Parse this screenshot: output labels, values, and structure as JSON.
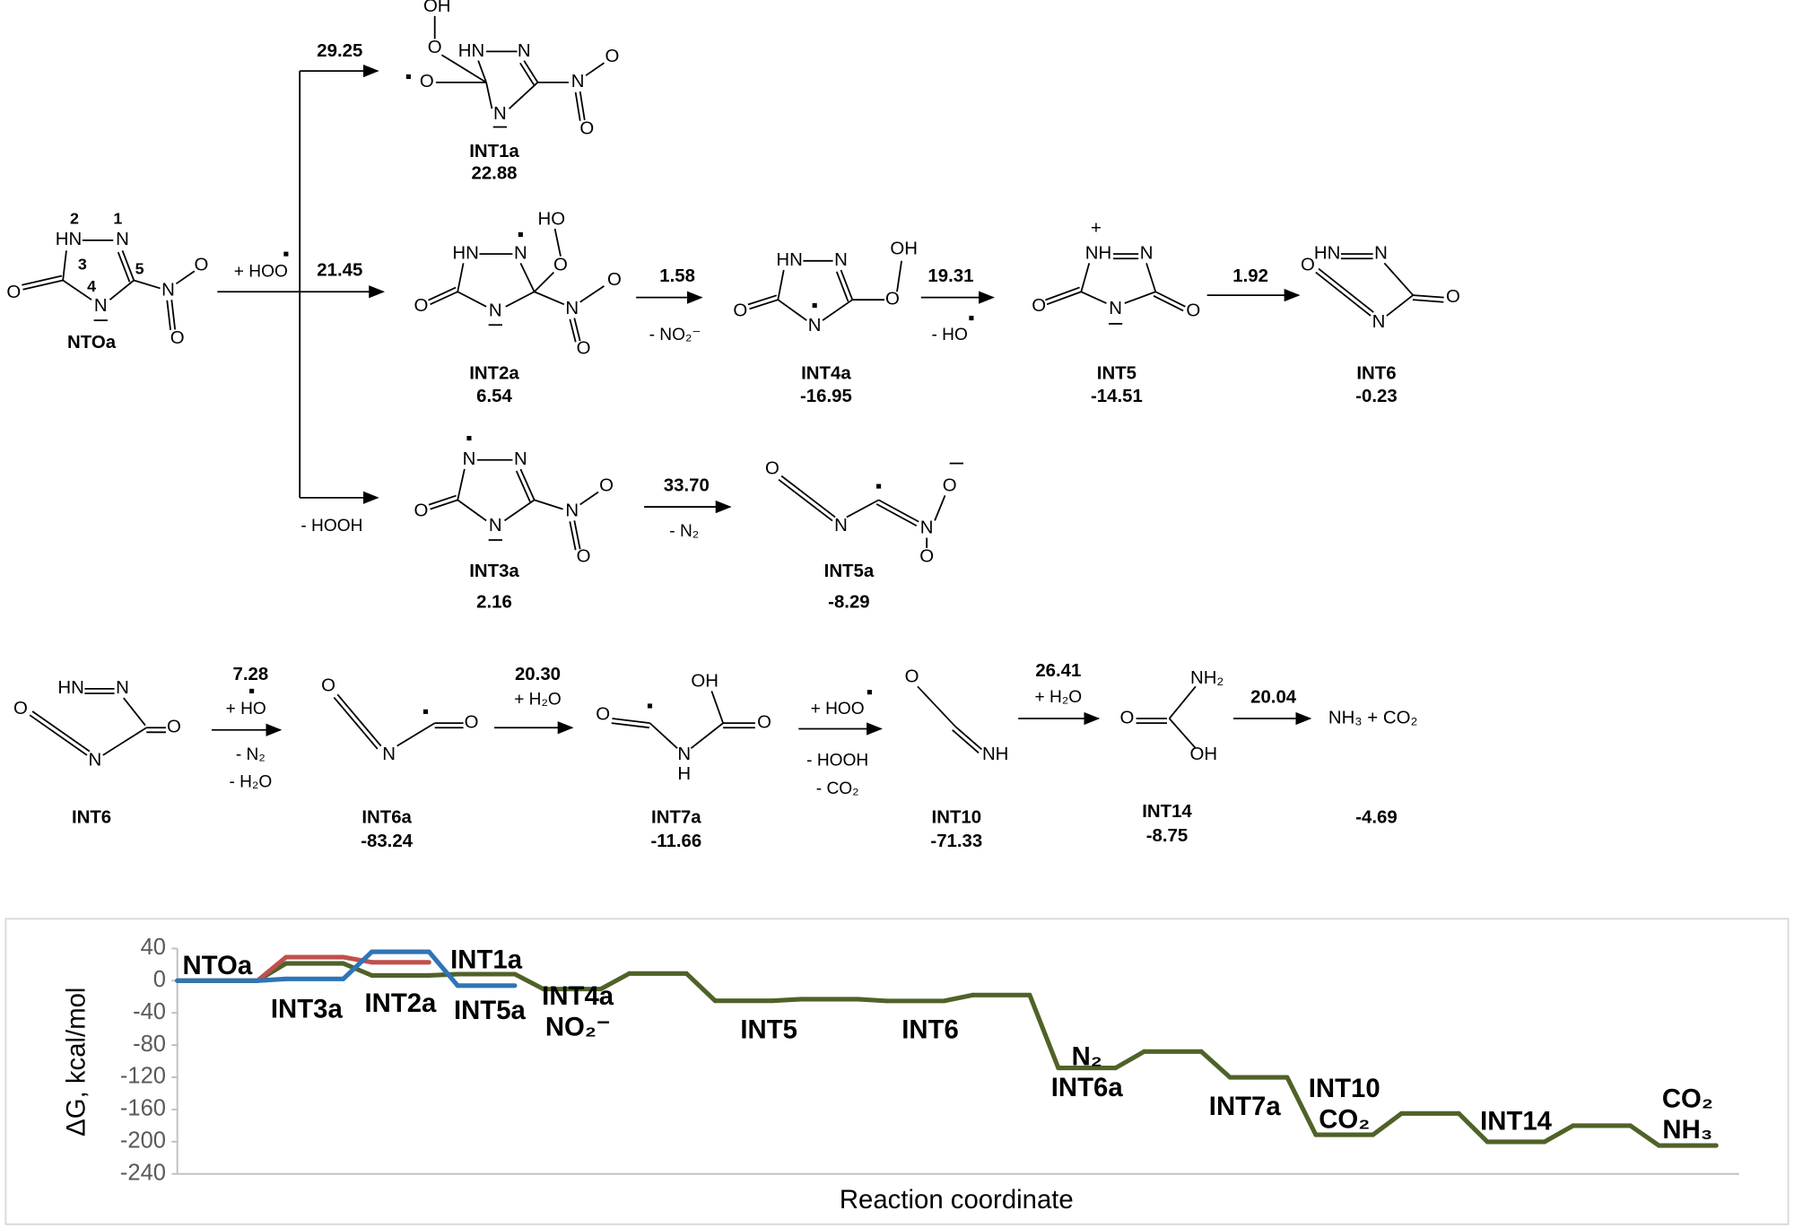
{
  "scheme": {
    "species": [
      {
        "name": "NTOa",
        "atoms": [
          "HN",
          "N",
          "O",
          "N",
          "N",
          "O",
          "O",
          "2",
          "1",
          "3",
          "4",
          "5"
        ]
      },
      {
        "name": "INT1a",
        "energy": "22.88",
        "atoms": [
          "OH",
          "O",
          "O",
          "HN",
          "N",
          "N",
          "N",
          "O",
          "O"
        ]
      },
      {
        "name": "INT2a",
        "energy": "6.54",
        "atoms": [
          "HN",
          "N",
          "HO",
          "O",
          "O",
          "N",
          "N",
          "O",
          "O"
        ]
      },
      {
        "name": "INT4a",
        "energy": "-16.95",
        "atoms": [
          "HN",
          "N",
          "OH",
          "O",
          "O",
          "N"
        ]
      },
      {
        "name": "INT5",
        "energy": "-14.51",
        "atoms": [
          "+",
          "NH",
          "N",
          "O",
          "O",
          "N"
        ]
      },
      {
        "name": "INT6",
        "energy": "-0.23",
        "atoms": [
          "HN",
          "N",
          "O",
          "N",
          "O"
        ]
      },
      {
        "name": "INT3a",
        "energy": "2.16",
        "atoms": [
          "N",
          "N",
          "O",
          "N",
          "N",
          "O",
          "O"
        ]
      },
      {
        "name": "INT5a",
        "energy": "-8.29",
        "atoms": [
          "O",
          "N",
          "N",
          "O",
          "O"
        ]
      },
      {
        "name": "INT6",
        "atoms": [
          "HN",
          "N",
          "O",
          "N",
          "O"
        ]
      },
      {
        "name": "INT6a",
        "energy": "-83.24",
        "atoms": [
          "O",
          "N",
          "O"
        ]
      },
      {
        "name": "INT7a",
        "energy": "-11.66",
        "atoms": [
          "O",
          "N",
          "H",
          "OH",
          "O"
        ]
      },
      {
        "name": "INT10",
        "energy": "-71.33",
        "atoms": [
          "O",
          "NH"
        ]
      },
      {
        "name": "INT14",
        "energy": "-8.75",
        "atoms": [
          "NH₂",
          "O",
          "OH"
        ]
      },
      {
        "energy": "-4.69",
        "atoms": [
          "NH₃ + CO₂"
        ]
      }
    ],
    "steps": [
      {
        "barrier": "29.25"
      },
      {
        "barrier": "21.45",
        "conditions": [
          "+ HOO"
        ]
      },
      {
        "conditions": [
          "- HOOH"
        ]
      },
      {
        "barrier": "1.58",
        "conditions": [
          "- NO₂⁻"
        ]
      },
      {
        "barrier": "19.31",
        "conditions": [
          "- HO"
        ]
      },
      {
        "barrier": "1.92"
      },
      {
        "barrier": "33.70",
        "conditions": [
          "- N₂"
        ]
      },
      {
        "barrier": "7.28",
        "conditions": [
          "+ HO",
          "- N₂",
          "- H₂O"
        ]
      },
      {
        "barrier": "20.30",
        "conditions": [
          "+ H₂O"
        ]
      },
      {
        "conditions": [
          "+ HOO",
          "- HOOH",
          "- CO₂"
        ]
      },
      {
        "barrier": "26.41",
        "conditions": [
          "+ H₂O"
        ]
      },
      {
        "barrier": "20.04"
      }
    ]
  },
  "chart_data": {
    "type": "line",
    "ylabel": "ΔG, kcal/mol",
    "xlabel": "Reaction coordinate",
    "ylim": [
      -240,
      40
    ],
    "yticks": [
      -240,
      -200,
      -160,
      -120,
      -80,
      -40,
      0,
      40
    ],
    "series": [
      {
        "color": "#4f6228",
        "values": [
          0,
          21.45,
          6.54,
          8.12,
          -10.41,
          8.9,
          -24.92,
          -23.0,
          -25.15,
          -17.87,
          -108.39,
          -88.09,
          -120.05,
          -191.38,
          -164.97,
          -200.13,
          -180.09,
          -204.82
        ],
        "labels": [
          "NTOa",
          null,
          "INT2a",
          null,
          "INT4a\nNO₂⁻",
          null,
          "INT5",
          null,
          "INT6",
          null,
          "N₂\nINT6a",
          null,
          "INT7a",
          "INT10\nCO₂",
          null,
          "INT14",
          null,
          "CO₂\nNH₃"
        ]
      },
      {
        "color": "#c0504d",
        "values": [
          0,
          29.25,
          22.88
        ],
        "labels": [
          null,
          null,
          "INT1a"
        ]
      },
      {
        "color": "#2e75b6",
        "values": [
          0,
          2.16,
          35.86,
          -6.13
        ],
        "labels": [
          null,
          "INT3a",
          null,
          "INT5a"
        ]
      }
    ]
  }
}
